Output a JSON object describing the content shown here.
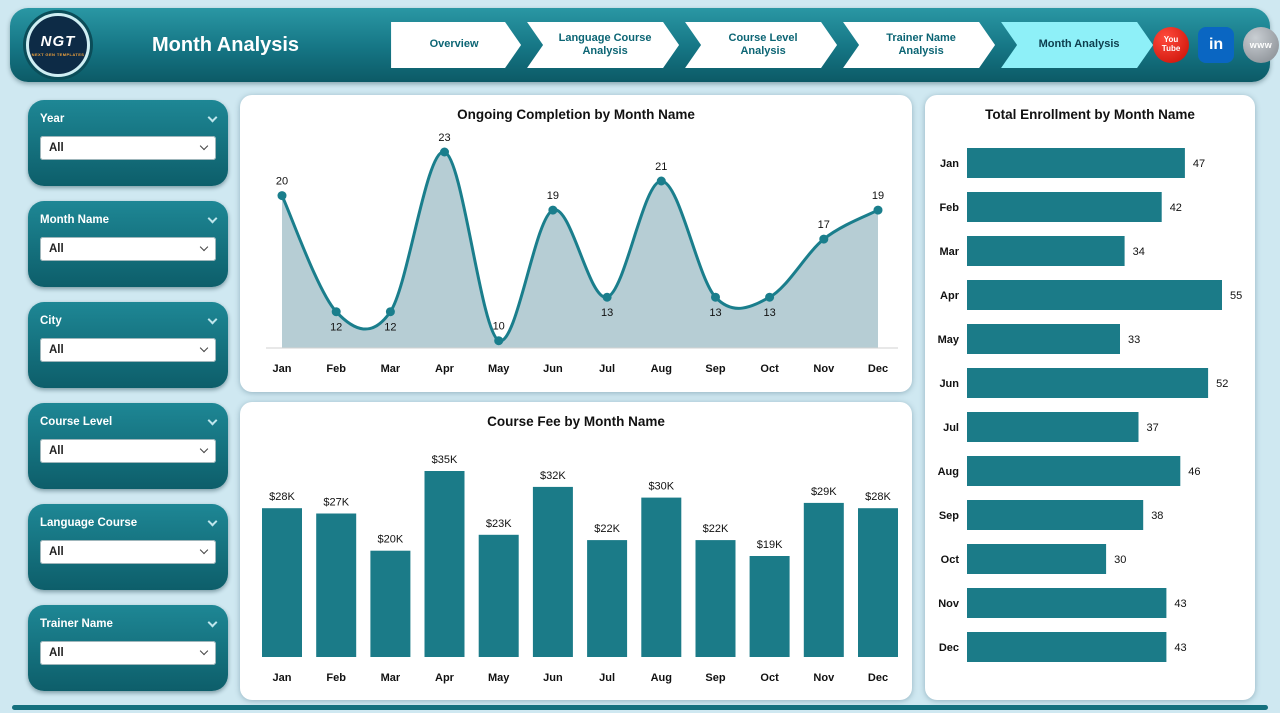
{
  "header": {
    "title": "Month Analysis",
    "logo": {
      "text": "NGT",
      "subtext": "NEXT GEN TEMPLATES"
    },
    "nav": [
      {
        "label": "Overview"
      },
      {
        "label": "Language Course Analysis"
      },
      {
        "label": "Course Level Analysis"
      },
      {
        "label": "Trainer Name Analysis"
      },
      {
        "label": "Month Analysis"
      }
    ],
    "social": {
      "youtube": {
        "line1": "You",
        "line2": "Tube"
      },
      "linkedin": {
        "label": "in"
      },
      "web": {
        "label": "www"
      }
    }
  },
  "sidebar": {
    "slicers": [
      {
        "label": "Year",
        "value": "All"
      },
      {
        "label": "Month Name",
        "value": "All"
      },
      {
        "label": "City",
        "value": "All"
      },
      {
        "label": "Course Level",
        "value": "All"
      },
      {
        "label": "Language Course",
        "value": "All"
      },
      {
        "label": "Trainer Name",
        "value": "All"
      }
    ]
  },
  "colors": {
    "teal": "#15707e",
    "bar": "#1b7b88",
    "area_fill": "#b6cdd4",
    "line": "#1a7e8c",
    "active_nav": "#8ef0f8",
    "background": "#cfe8f1"
  },
  "chart_data": [
    {
      "type": "area",
      "title": "Ongoing Completion by Month Name",
      "categories": [
        "Jan",
        "Feb",
        "Mar",
        "Apr",
        "May",
        "Jun",
        "Jul",
        "Aug",
        "Sep",
        "Oct",
        "Nov",
        "Dec"
      ],
      "values": [
        20,
        12,
        12,
        23,
        10,
        19,
        13,
        21,
        13,
        13,
        17,
        19
      ],
      "ylim": [
        9.5,
        23
      ],
      "line_color": "#1a7e8c",
      "fill_color": "#b6cdd4",
      "grid": false,
      "legend": "none"
    },
    {
      "type": "bar",
      "title": "Course Fee by Month Name",
      "categories": [
        "Jan",
        "Feb",
        "Mar",
        "Apr",
        "May",
        "Jun",
        "Jul",
        "Aug",
        "Sep",
        "Oct",
        "Nov",
        "Dec"
      ],
      "values": [
        28,
        27,
        20,
        35,
        23,
        32,
        22,
        30,
        22,
        19,
        29,
        28
      ],
      "labels": [
        "$28K",
        "$27K",
        "$20K",
        "$35K",
        "$23K",
        "$32K",
        "$22K",
        "$30K",
        "$22K",
        "$19K",
        "$29K",
        "$28K"
      ],
      "ylim": [
        0,
        35
      ],
      "bar_color": "#1b7b88",
      "grid": false,
      "legend": "none"
    },
    {
      "type": "hbar",
      "title": "Total Enrollment by Month Name",
      "categories": [
        "Jan",
        "Feb",
        "Mar",
        "Apr",
        "May",
        "Jun",
        "Jul",
        "Aug",
        "Sep",
        "Oct",
        "Nov",
        "Dec"
      ],
      "values": [
        47,
        42,
        34,
        55,
        33,
        52,
        37,
        46,
        38,
        30,
        43,
        43
      ],
      "xlim": [
        0,
        55
      ],
      "bar_color": "#1b7b88",
      "grid": false,
      "legend": "none"
    }
  ]
}
